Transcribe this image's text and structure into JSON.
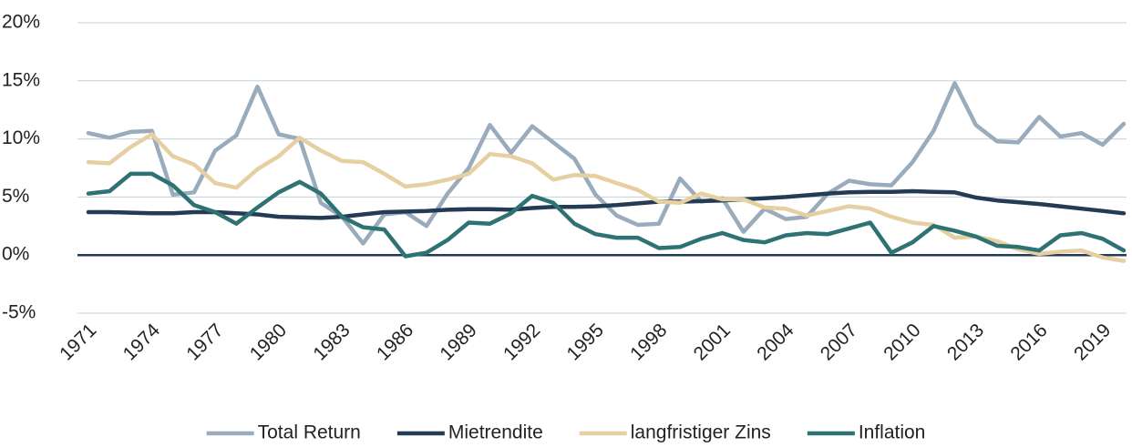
{
  "chart_data": {
    "type": "line",
    "x": [
      1971,
      1972,
      1973,
      1974,
      1975,
      1976,
      1977,
      1978,
      1979,
      1980,
      1981,
      1982,
      1983,
      1984,
      1985,
      1986,
      1987,
      1988,
      1989,
      1990,
      1991,
      1992,
      1993,
      1994,
      1995,
      1996,
      1997,
      1998,
      1999,
      2000,
      2001,
      2002,
      2003,
      2004,
      2005,
      2006,
      2007,
      2008,
      2009,
      2010,
      2011,
      2012,
      2013,
      2014,
      2015,
      2016,
      2017,
      2018,
      2019,
      2020
    ],
    "xlim": [
      1971,
      2020
    ],
    "xticks": [
      1971,
      1974,
      1977,
      1980,
      1983,
      1986,
      1989,
      1992,
      1995,
      1998,
      2001,
      2004,
      2007,
      2010,
      2013,
      2016,
      2019
    ],
    "ylim": [
      -5,
      20
    ],
    "yticks": [
      {
        "value": -5,
        "label": "-5%"
      },
      {
        "value": 0,
        "label": "0%"
      },
      {
        "value": 5,
        "label": "5%"
      },
      {
        "value": 10,
        "label": "10%"
      },
      {
        "value": 15,
        "label": "15%"
      },
      {
        "value": 20,
        "label": "20%"
      }
    ],
    "grid": true,
    "legend": "bottom",
    "series": [
      {
        "name": "Total Return",
        "color": "#9aabbc",
        "values": [
          10.5,
          10.1,
          10.6,
          10.7,
          5.2,
          5.4,
          9.0,
          10.3,
          14.5,
          10.4,
          10.0,
          4.5,
          3.3,
          1.0,
          3.5,
          3.7,
          2.5,
          5.3,
          7.5,
          11.2,
          8.8,
          11.1,
          9.7,
          8.3,
          5.2,
          3.4,
          2.6,
          2.7,
          6.6,
          4.6,
          4.9,
          2.0,
          4.0,
          3.1,
          3.3,
          5.3,
          6.4,
          6.1,
          6.0,
          8.0,
          10.7,
          14.8,
          11.2,
          9.8,
          9.7,
          11.9,
          10.2,
          10.5,
          9.5,
          11.3
        ]
      },
      {
        "name": "Mietrendite",
        "color": "#243b55",
        "values": [
          3.7,
          3.7,
          3.65,
          3.6,
          3.6,
          3.7,
          3.7,
          3.6,
          3.5,
          3.3,
          3.25,
          3.2,
          3.3,
          3.5,
          3.7,
          3.75,
          3.8,
          3.9,
          3.95,
          3.95,
          3.9,
          4.05,
          4.15,
          4.15,
          4.2,
          4.3,
          4.45,
          4.6,
          4.6,
          4.65,
          4.7,
          4.8,
          4.9,
          5.0,
          5.15,
          5.3,
          5.4,
          5.45,
          5.45,
          5.5,
          5.45,
          5.4,
          4.95,
          4.7,
          4.55,
          4.4,
          4.2,
          4.0,
          3.8,
          3.6
        ]
      },
      {
        "name": "langfristiger Zins",
        "color": "#e6cfa1",
        "values": [
          8.0,
          7.9,
          9.3,
          10.4,
          8.5,
          7.8,
          6.2,
          5.8,
          7.4,
          8.5,
          10.1,
          9.0,
          8.1,
          8.0,
          7.0,
          5.9,
          6.1,
          6.5,
          7.0,
          8.7,
          8.5,
          7.9,
          6.5,
          6.9,
          6.8,
          6.2,
          5.6,
          4.6,
          4.5,
          5.3,
          4.8,
          4.8,
          4.1,
          4.0,
          3.4,
          3.8,
          4.2,
          4.0,
          3.3,
          2.8,
          2.6,
          1.5,
          1.6,
          1.2,
          0.5,
          0.1,
          0.3,
          0.4,
          -0.2,
          -0.5
        ]
      },
      {
        "name": "Inflation",
        "color": "#2e7274",
        "values": [
          5.3,
          5.5,
          7.0,
          7.0,
          6.0,
          4.3,
          3.7,
          2.7,
          4.1,
          5.4,
          6.3,
          5.3,
          3.3,
          2.4,
          2.2,
          -0.1,
          0.2,
          1.3,
          2.8,
          2.7,
          3.6,
          5.1,
          4.5,
          2.7,
          1.8,
          1.5,
          1.5,
          0.6,
          0.7,
          1.4,
          1.9,
          1.3,
          1.1,
          1.7,
          1.9,
          1.8,
          2.3,
          2.8,
          0.2,
          1.1,
          2.5,
          2.1,
          1.6,
          0.8,
          0.7,
          0.4,
          1.7,
          1.9,
          1.4,
          0.4
        ]
      }
    ]
  }
}
